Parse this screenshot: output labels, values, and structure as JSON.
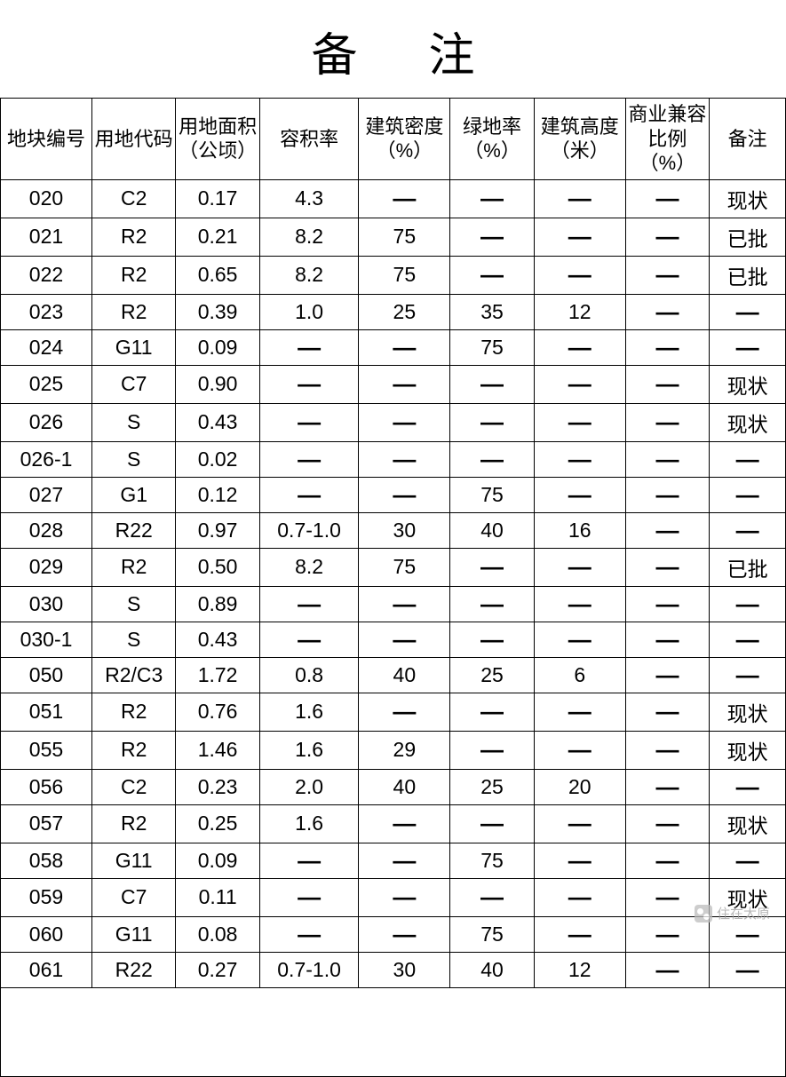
{
  "title": "备注",
  "dash": "—",
  "watermark": "住在太原",
  "table": {
    "type": "table",
    "border_color": "#000000",
    "background_color": "#ffffff",
    "text_color": "#000000",
    "header_fontsize": 22,
    "cell_fontsize": 23,
    "columns": [
      "地块编号",
      "用地代码",
      "用地面积（公顷）",
      "容积率",
      "建筑密度（%）",
      "绿地率（%）",
      "建筑高度（米）",
      "商业兼容比例（%）",
      "备注"
    ],
    "column_widths_pct": [
      12,
      11,
      11,
      13,
      12,
      11,
      12,
      11,
      10
    ],
    "rows": [
      [
        "020",
        "C2",
        "0.17",
        "4.3",
        "—",
        "—",
        "—",
        "—",
        "现状"
      ],
      [
        "021",
        "R2",
        "0.21",
        "8.2",
        "75",
        "—",
        "—",
        "—",
        "已批"
      ],
      [
        "022",
        "R2",
        "0.65",
        "8.2",
        "75",
        "—",
        "—",
        "—",
        "已批"
      ],
      [
        "023",
        "R2",
        "0.39",
        "1.0",
        "25",
        "35",
        "12",
        "—",
        "—"
      ],
      [
        "024",
        "G11",
        "0.09",
        "—",
        "—",
        "75",
        "—",
        "—",
        "—"
      ],
      [
        "025",
        "C7",
        "0.90",
        "—",
        "—",
        "—",
        "—",
        "—",
        "现状"
      ],
      [
        "026",
        "S",
        "0.43",
        "—",
        "—",
        "—",
        "—",
        "—",
        "现状"
      ],
      [
        "026-1",
        "S",
        "0.02",
        "—",
        "—",
        "—",
        "—",
        "—",
        "—"
      ],
      [
        "027",
        "G1",
        "0.12",
        "—",
        "—",
        "75",
        "—",
        "—",
        "—"
      ],
      [
        "028",
        "R22",
        "0.97",
        "0.7-1.0",
        "30",
        "40",
        "16",
        "—",
        "—"
      ],
      [
        "029",
        "R2",
        "0.50",
        "8.2",
        "75",
        "—",
        "—",
        "—",
        "已批"
      ],
      [
        "030",
        "S",
        "0.89",
        "—",
        "—",
        "—",
        "—",
        "—",
        "—"
      ],
      [
        "030-1",
        "S",
        "0.43",
        "—",
        "—",
        "—",
        "—",
        "—",
        "—"
      ],
      [
        "050",
        "R2/C3",
        "1.72",
        "0.8",
        "40",
        "25",
        "6",
        "—",
        "—"
      ],
      [
        "051",
        "R2",
        "0.76",
        "1.6",
        "—",
        "—",
        "—",
        "—",
        "现状"
      ],
      [
        "055",
        "R2",
        "1.46",
        "1.6",
        "29",
        "—",
        "—",
        "—",
        "现状"
      ],
      [
        "056",
        "C2",
        "0.23",
        "2.0",
        "40",
        "25",
        "20",
        "—",
        "—"
      ],
      [
        "057",
        "R2",
        "0.25",
        "1.6",
        "—",
        "—",
        "—",
        "—",
        "现状"
      ],
      [
        "058",
        "G11",
        "0.09",
        "—",
        "—",
        "75",
        "—",
        "—",
        "—"
      ],
      [
        "059",
        "C7",
        "0.11",
        "—",
        "—",
        "—",
        "—",
        "—",
        "现状"
      ],
      [
        "060",
        "G11",
        "0.08",
        "—",
        "—",
        "75",
        "—",
        "—",
        "—"
      ],
      [
        "061",
        "R22",
        "0.27",
        "0.7-1.0",
        "30",
        "40",
        "12",
        "—",
        "—"
      ]
    ]
  }
}
